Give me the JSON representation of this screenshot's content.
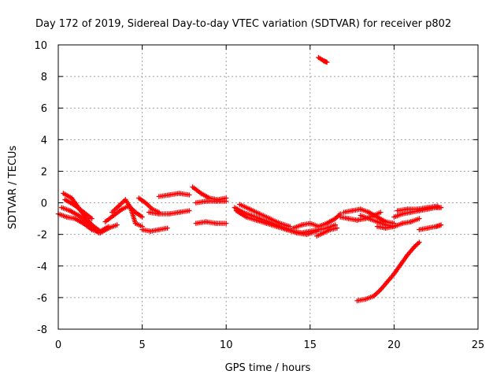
{
  "chart_data": {
    "type": "scatter",
    "title": "Day 172 of 2019, Sidereal Day-to-day VTEC variation (SDTVAR) for receiver p802",
    "xlabel": "GPS time / hours",
    "ylabel": "SDTVAR / TECUs",
    "xlim": [
      0,
      25
    ],
    "ylim": [
      -8,
      10
    ],
    "xticks": [
      0,
      5,
      10,
      15,
      20,
      25
    ],
    "yticks": [
      -8,
      -6,
      -4,
      -2,
      0,
      2,
      4,
      6,
      8,
      10
    ],
    "grid": true,
    "marker": "+",
    "series": [
      {
        "name": "SDTVAR",
        "color": "#ff0000",
        "tracks": [
          [
            [
              0,
              -0.7
            ],
            [
              0.5,
              -0.9
            ],
            [
              1,
              -1.0
            ],
            [
              1.5,
              -1.3
            ],
            [
              2,
              -1.7
            ],
            [
              2.5,
              -1.9
            ],
            [
              3,
              -1.6
            ],
            [
              3.5,
              -1.4
            ]
          ],
          [
            [
              0.3,
              0.6
            ],
            [
              0.8,
              0.3
            ],
            [
              1.2,
              -0.3
            ],
            [
              1.6,
              -0.9
            ],
            [
              2,
              -1.4
            ],
            [
              2.5,
              -1.8
            ],
            [
              3,
              -1.5
            ]
          ],
          [
            [
              0.2,
              -0.3
            ],
            [
              0.7,
              -0.5
            ],
            [
              1.2,
              -0.8
            ],
            [
              1.8,
              -1.3
            ],
            [
              2.4,
              -1.9
            ]
          ],
          [
            [
              0.4,
              0.2
            ],
            [
              0.9,
              -0.1
            ],
            [
              1.4,
              -0.5
            ],
            [
              2.0,
              -1.0
            ]
          ],
          [
            [
              2.8,
              -1.2
            ],
            [
              3.3,
              -0.8
            ],
            [
              3.8,
              -0.4
            ],
            [
              4.2,
              -0.2
            ],
            [
              4.6,
              -0.6
            ],
            [
              5.0,
              -0.9
            ]
          ],
          [
            [
              3.2,
              -0.6
            ],
            [
              3.6,
              -0.2
            ],
            [
              4.0,
              0.2
            ],
            [
              4.3,
              -0.3
            ],
            [
              4.6,
              -1.3
            ],
            [
              5.0,
              -1.5
            ]
          ],
          [
            [
              5.0,
              -1.7
            ],
            [
              5.5,
              -1.8
            ],
            [
              6.0,
              -1.7
            ],
            [
              6.5,
              -1.6
            ]
          ],
          [
            [
              4.8,
              0.3
            ],
            [
              5.2,
              0.0
            ],
            [
              5.6,
              -0.4
            ],
            [
              6.0,
              -0.6
            ]
          ],
          [
            [
              5.4,
              -0.6
            ],
            [
              6.0,
              -0.7
            ],
            [
              6.6,
              -0.7
            ],
            [
              7.2,
              -0.6
            ],
            [
              7.8,
              -0.5
            ]
          ],
          [
            [
              6.0,
              0.4
            ],
            [
              6.6,
              0.5
            ],
            [
              7.2,
              0.6
            ],
            [
              7.8,
              0.5
            ]
          ],
          [
            [
              8.0,
              1.0
            ],
            [
              8.5,
              0.6
            ],
            [
              9.0,
              0.3
            ],
            [
              9.5,
              0.2
            ],
            [
              10.0,
              0.3
            ]
          ],
          [
            [
              8.2,
              0.0
            ],
            [
              8.8,
              0.1
            ],
            [
              9.4,
              0.1
            ],
            [
              10.0,
              0.1
            ]
          ],
          [
            [
              8.2,
              -1.3
            ],
            [
              8.8,
              -1.2
            ],
            [
              9.4,
              -1.3
            ],
            [
              10.0,
              -1.3
            ]
          ],
          [
            [
              10.5,
              -0.3
            ],
            [
              11.0,
              -0.6
            ],
            [
              11.5,
              -0.8
            ],
            [
              12.0,
              -1.0
            ],
            [
              12.5,
              -1.2
            ],
            [
              13.0,
              -1.4
            ],
            [
              13.5,
              -1.6
            ],
            [
              14.0,
              -1.8
            ],
            [
              14.5,
              -1.9
            ],
            [
              15.0,
              -1.8
            ],
            [
              15.5,
              -1.7
            ],
            [
              16.0,
              -1.6
            ],
            [
              16.5,
              -1.4
            ]
          ],
          [
            [
              10.6,
              -0.5
            ],
            [
              11.2,
              -0.9
            ],
            [
              11.8,
              -1.1
            ],
            [
              12.4,
              -1.3
            ],
            [
              13.0,
              -1.5
            ],
            [
              13.6,
              -1.7
            ],
            [
              14.2,
              -1.9
            ],
            [
              14.8,
              -2.0
            ],
            [
              15.4,
              -1.8
            ]
          ],
          [
            [
              10.8,
              -0.1
            ],
            [
              11.4,
              -0.4
            ],
            [
              12.0,
              -0.7
            ],
            [
              12.6,
              -1.0
            ],
            [
              13.2,
              -1.3
            ],
            [
              13.8,
              -1.5
            ]
          ],
          [
            [
              14.0,
              -1.6
            ],
            [
              14.5,
              -1.4
            ],
            [
              15.0,
              -1.3
            ],
            [
              15.5,
              -1.5
            ],
            [
              16.0,
              -1.3
            ],
            [
              16.5,
              -1.0
            ],
            [
              16.8,
              -0.7
            ]
          ],
          [
            [
              15.4,
              -2.1
            ],
            [
              15.8,
              -1.9
            ],
            [
              16.2,
              -1.7
            ],
            [
              16.6,
              -1.6
            ]
          ],
          [
            [
              15.5,
              9.2
            ],
            [
              15.8,
              9.0
            ],
            [
              16.0,
              8.9
            ]
          ],
          [
            [
              16.8,
              -0.9
            ],
            [
              17.3,
              -1.0
            ],
            [
              17.8,
              -1.1
            ],
            [
              18.3,
              -1.0
            ],
            [
              18.8,
              -0.8
            ],
            [
              19.2,
              -0.6
            ]
          ],
          [
            [
              17.0,
              -0.6
            ],
            [
              17.5,
              -0.5
            ],
            [
              18.0,
              -0.4
            ],
            [
              18.5,
              -0.6
            ],
            [
              19.0,
              -0.9
            ],
            [
              19.5,
              -1.2
            ],
            [
              20.0,
              -1.3
            ]
          ],
          [
            [
              18.0,
              -0.8
            ],
            [
              18.5,
              -1.0
            ],
            [
              19.0,
              -1.2
            ],
            [
              19.5,
              -1.4
            ],
            [
              20.0,
              -1.5
            ]
          ],
          [
            [
              19.0,
              -1.5
            ],
            [
              19.5,
              -1.6
            ],
            [
              20.0,
              -1.5
            ],
            [
              20.5,
              -1.3
            ],
            [
              21.0,
              -1.2
            ],
            [
              21.5,
              -1.0
            ]
          ],
          [
            [
              20.0,
              -0.9
            ],
            [
              20.5,
              -0.7
            ],
            [
              21.0,
              -0.6
            ],
            [
              21.5,
              -0.5
            ],
            [
              22.0,
              -0.4
            ],
            [
              22.5,
              -0.3
            ],
            [
              22.8,
              -0.3
            ]
          ],
          [
            [
              20.2,
              -0.5
            ],
            [
              20.8,
              -0.4
            ],
            [
              21.4,
              -0.4
            ],
            [
              22.0,
              -0.3
            ],
            [
              22.6,
              -0.2
            ]
          ],
          [
            [
              21.5,
              -1.7
            ],
            [
              22.0,
              -1.6
            ],
            [
              22.5,
              -1.5
            ],
            [
              22.8,
              -1.4
            ]
          ],
          [
            [
              17.8,
              -6.2
            ],
            [
              18.3,
              -6.1
            ],
            [
              18.8,
              -5.9
            ],
            [
              19.2,
              -5.5
            ],
            [
              19.6,
              -5.0
            ],
            [
              20.0,
              -4.5
            ],
            [
              20.4,
              -3.9
            ],
            [
              20.8,
              -3.3
            ],
            [
              21.2,
              -2.8
            ],
            [
              21.5,
              -2.5
            ]
          ]
        ]
      }
    ]
  }
}
